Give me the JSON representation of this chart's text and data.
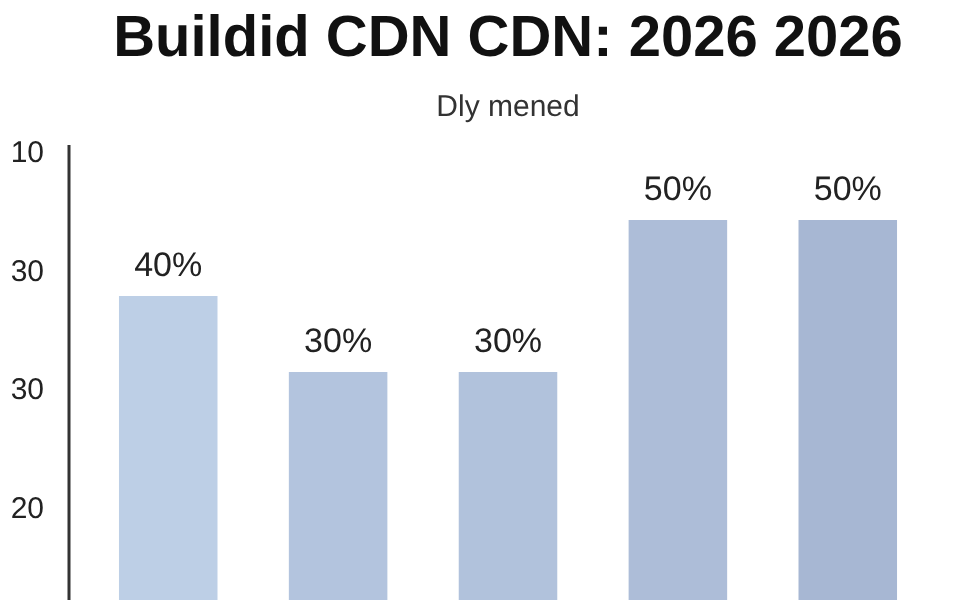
{
  "chart_data": {
    "type": "bar",
    "title": "Buildid CDN CDN: 2026 2026",
    "subtitle": "Dly mened",
    "categories": [
      null,
      null,
      null,
      null,
      null
    ],
    "values": [
      40,
      30,
      30,
      50,
      50
    ],
    "value_labels": [
      "40%",
      "30%",
      "30%",
      "50%",
      "50%"
    ],
    "colors": [
      "#bdcfe6",
      "#b3c4de",
      "#b1c2dc",
      "#adbdd8",
      "#a7b7d3"
    ],
    "ylim": [
      0,
      60
    ],
    "annotations": [
      "10",
      "30",
      "30",
      "20"
    ]
  }
}
